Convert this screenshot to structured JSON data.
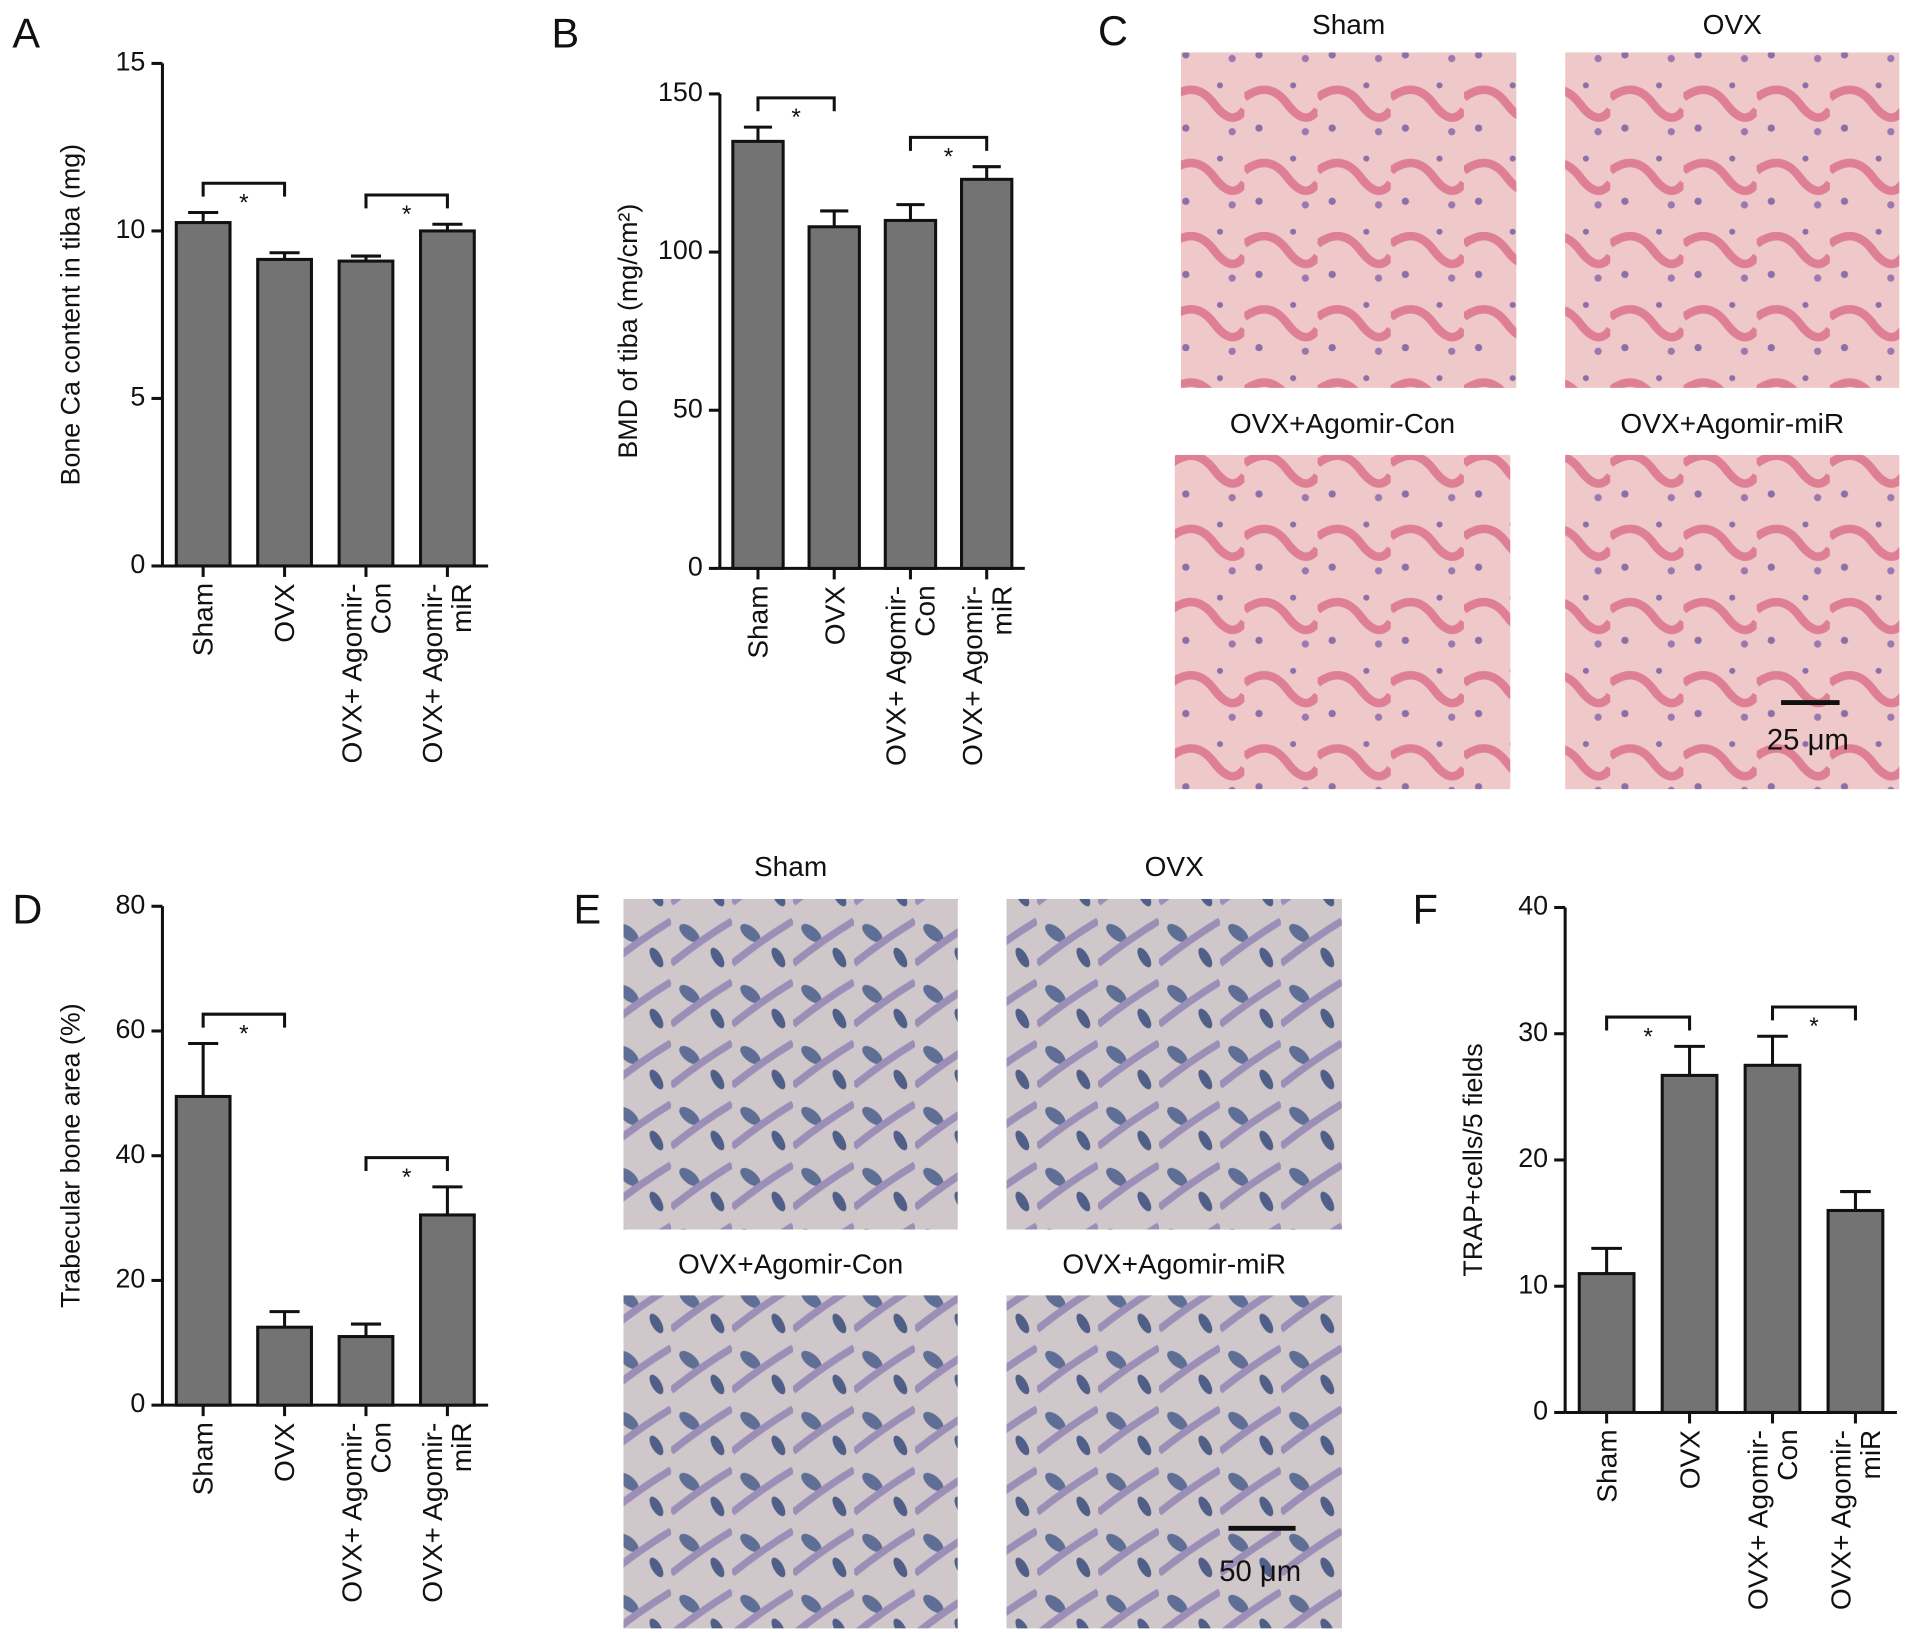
{
  "chart_data": [
    {
      "type": "bar",
      "panel": "A",
      "y_label": "Bone Ca content in tiba (mg)",
      "categories": [
        "Sham",
        "OVX",
        "OVX+ Agomir-Con",
        "OVX+ Agomir-miR"
      ],
      "values": [
        10.25,
        9.15,
        9.1,
        10.0
      ],
      "errors": [
        0.3,
        0.2,
        0.15,
        0.2
      ],
      "color": "#737373",
      "ylim": [
        0,
        15
      ],
      "yticks": [
        0,
        5,
        10,
        15
      ],
      "significance": [
        {
          "from": 0,
          "to": 1,
          "label": "*"
        },
        {
          "from": 2,
          "to": 3,
          "label": "*"
        }
      ]
    },
    {
      "type": "bar",
      "panel": "B",
      "y_label": "BMD of tiba (mg/cm²)",
      "categories": [
        "Sham",
        "OVX",
        "OVX+ Agomir-Con",
        "OVX+ Agomir-miR"
      ],
      "values": [
        135,
        108,
        110,
        123
      ],
      "errors": [
        4.5,
        5,
        5,
        4
      ],
      "color": "#737373",
      "ylim": [
        0,
        150
      ],
      "yticks": [
        0,
        50,
        100,
        150
      ],
      "significance": [
        {
          "from": 0,
          "to": 1,
          "label": "*"
        },
        {
          "from": 2,
          "to": 3,
          "label": "*"
        }
      ]
    },
    {
      "type": "bar",
      "panel": "D",
      "y_label": "Trabecular bone area (%)",
      "categories": [
        "Sham",
        "OVX",
        "OVX+ Agomir-Con",
        "OVX+ Agomir-miR"
      ],
      "values": [
        49.5,
        12.5,
        11,
        30.5
      ],
      "errors": [
        8.5,
        2.5,
        2,
        4.5
      ],
      "color": "#737373",
      "ylim": [
        0,
        80
      ],
      "yticks": [
        0,
        20,
        40,
        60,
        80
      ],
      "significance": [
        {
          "from": 0,
          "to": 1,
          "label": "*"
        },
        {
          "from": 2,
          "to": 3,
          "label": "*"
        }
      ]
    },
    {
      "type": "bar",
      "panel": "F",
      "y_label": "TRAP+cells/5 fields",
      "categories": [
        "Sham",
        "OVX",
        "OVX+ Agomir-Con",
        "OVX+ Agomir-miR"
      ],
      "values": [
        11,
        26.7,
        27.5,
        16
      ],
      "errors": [
        2,
        2.3,
        2.3,
        1.5
      ],
      "color": "#737373",
      "ylim": [
        0,
        40
      ],
      "yticks": [
        0,
        10,
        20,
        30,
        40
      ],
      "significance": [
        {
          "from": 0,
          "to": 1,
          "label": "*"
        },
        {
          "from": 2,
          "to": 3,
          "label": "*"
        }
      ]
    }
  ],
  "image_panels": [
    {
      "panel": "C",
      "images": [
        {
          "label": "Sham"
        },
        {
          "label": "OVX"
        },
        {
          "label": "OVX+Agomir-Con"
        },
        {
          "label": "OVX+Agomir-miR"
        }
      ],
      "scale_bar": "25 μm"
    },
    {
      "panel": "E",
      "images": [
        {
          "label": "Sham"
        },
        {
          "label": "OVX"
        },
        {
          "label": "OVX+Agomir-Con"
        },
        {
          "label": "OVX+Agomir-miR"
        }
      ],
      "scale_bar": "50 μm"
    }
  ]
}
